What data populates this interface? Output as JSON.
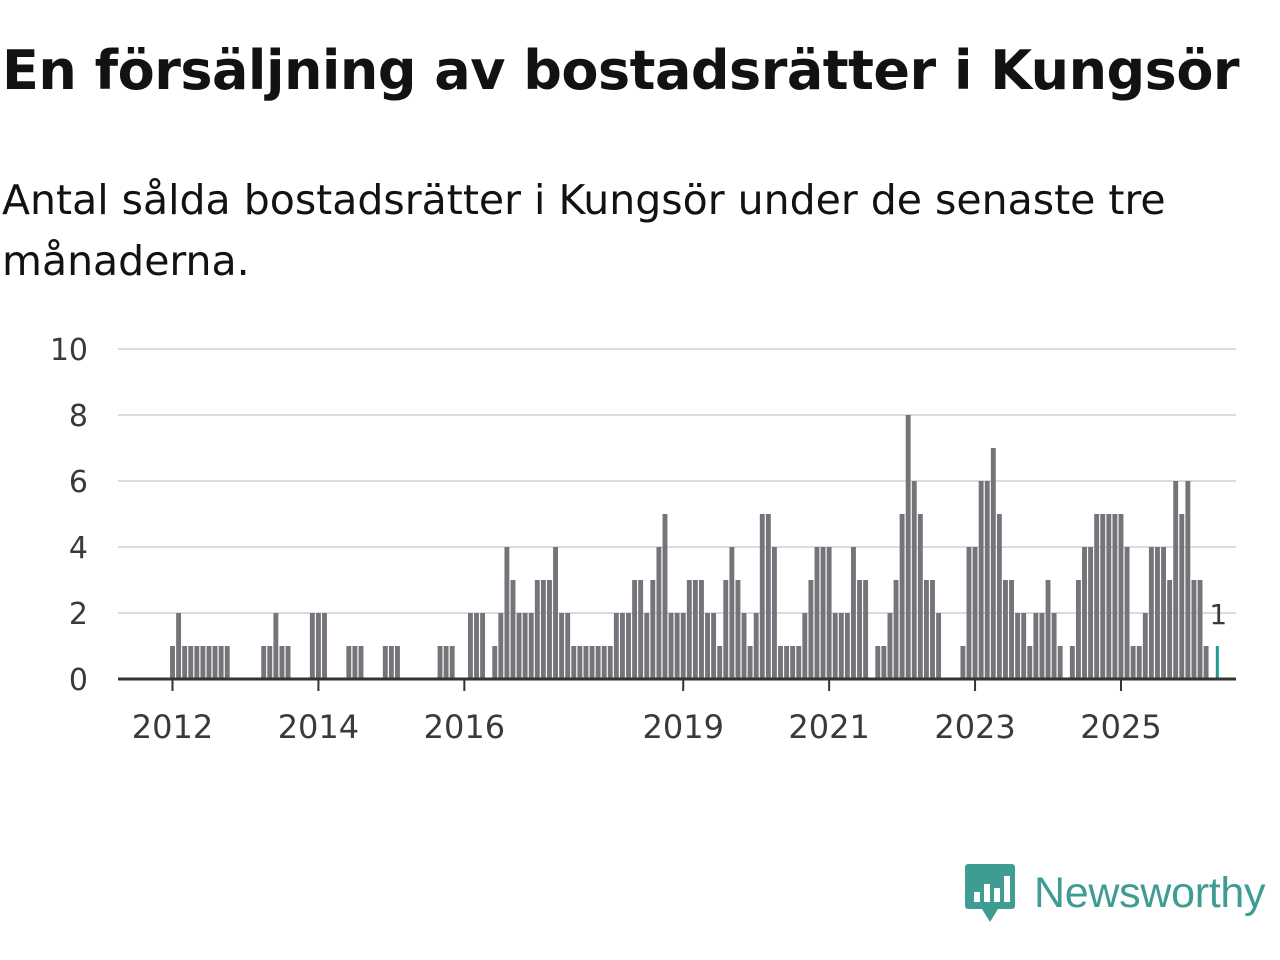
{
  "title": "En försäljning av bostadsrätter i Kungsör",
  "subtitle": "Antal sålda bostadsrätter i Kungsör under de senaste tre månaderna.",
  "brand": {
    "name": "Newsworthy",
    "color": "#3e9c93",
    "icon": "newsworthy-logo-icon"
  },
  "chart_data": {
    "type": "bar",
    "title": "En försäljning av bostadsrätter i Kungsör",
    "subtitle": "Antal sålda bostadsrätter i Kungsör under de senaste tre månaderna.",
    "xlabel": "",
    "ylabel": "",
    "ylim": [
      0,
      10
    ],
    "yticks": [
      "0",
      "2",
      "4",
      "6",
      "8",
      "10"
    ],
    "xticks": [
      "2012",
      "2014",
      "2016",
      "2019",
      "2021",
      "2023",
      "2025"
    ],
    "xtick_positions_years": [
      2012,
      2014,
      2016,
      2019,
      2021,
      2023,
      2025
    ],
    "start": {
      "year": 2012,
      "month": 1
    },
    "bar_color": "#76747b",
    "highlight_color": "#1a9c8f",
    "grid": true,
    "highlight_label": "1",
    "values": [
      1,
      2,
      1,
      1,
      1,
      1,
      1,
      1,
      1,
      1,
      0,
      0,
      0,
      0,
      0,
      1,
      1,
      2,
      1,
      1,
      0,
      0,
      0,
      2,
      2,
      2,
      0,
      0,
      0,
      1,
      1,
      1,
      0,
      0,
      0,
      1,
      1,
      1,
      0,
      0,
      0,
      0,
      0,
      0,
      1,
      1,
      1,
      0,
      0,
      2,
      2,
      2,
      0,
      1,
      2,
      4,
      3,
      2,
      2,
      2,
      3,
      3,
      3,
      4,
      2,
      2,
      1,
      1,
      1,
      1,
      1,
      1,
      1,
      2,
      2,
      2,
      3,
      3,
      2,
      3,
      4,
      5,
      2,
      2,
      2,
      3,
      3,
      3,
      2,
      2,
      1,
      3,
      4,
      3,
      2,
      1,
      2,
      5,
      5,
      4,
      1,
      1,
      1,
      1,
      2,
      3,
      4,
      4,
      4,
      2,
      2,
      2,
      4,
      3,
      3,
      0,
      1,
      1,
      2,
      3,
      5,
      8,
      6,
      5,
      3,
      3,
      2,
      0,
      0,
      0,
      1,
      4,
      4,
      6,
      6,
      7,
      5,
      3,
      3,
      2,
      2,
      1,
      2,
      2,
      3,
      2,
      1,
      0,
      1,
      3,
      4,
      4,
      5,
      5,
      5,
      5,
      5,
      4,
      1,
      1,
      2,
      4,
      4,
      4,
      3,
      6,
      5,
      6,
      3,
      3,
      1,
      0,
      1
    ]
  }
}
